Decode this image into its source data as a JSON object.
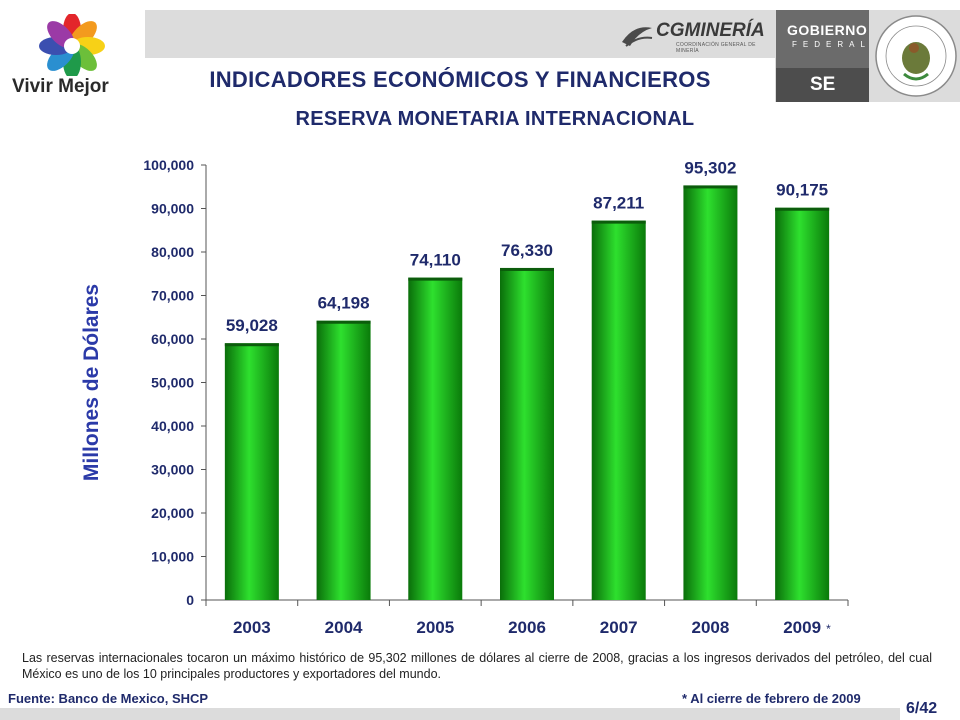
{
  "header": {
    "title": "INDICADORES ECONÓMICOS Y FINANCIEROS",
    "logo_left_text": "Vivir Mejor",
    "cgm_name": "CGMINERÍA",
    "cgm_sub": "COORDINACIÓN GENERAL DE MINERÍA",
    "gob_line1": "GOBIERNO",
    "gob_line2": "FEDERAL",
    "se_label": "SE"
  },
  "colors": {
    "bar": "#16c016",
    "title": "#1f2a6b",
    "axis_title": "#2b3aa8",
    "band": "#dcdcdc"
  },
  "chart_data": {
    "type": "bar",
    "title": "RESERVA  MONETARIA  INTERNACIONAL",
    "ylabel": "Millones de Dólares",
    "xlabel": "",
    "categories": [
      "2003",
      "2004",
      "2005",
      "2006",
      "2007",
      "2008",
      "2009"
    ],
    "values": [
      59028,
      64198,
      74110,
      76330,
      87211,
      95302,
      90175
    ],
    "value_labels": [
      "59,028",
      "64,198",
      "74,110",
      "76,330",
      "87,211",
      "95,302",
      "90,175"
    ],
    "yticks": [
      0,
      10000,
      20000,
      30000,
      40000,
      50000,
      60000,
      70000,
      80000,
      90000,
      100000
    ],
    "ytick_labels": [
      "0",
      "10,000",
      "20,000",
      "30,000",
      "40,000",
      "50,000",
      "60,000",
      "70,000",
      "80,000",
      "90,000",
      "100,000"
    ],
    "ylim": [
      0,
      100000
    ],
    "grid": false,
    "legend": "none",
    "category_marks": [
      "",
      "",
      "",
      "",
      "",
      "",
      "*"
    ]
  },
  "footer": {
    "note": "Las reservas internacionales tocaron un máximo histórico de 95,302 millones de dólares al cierre de 2008, gracias a los ingresos derivados del petróleo, del cual México es uno de los 10 principales productores y exportadores del mundo.",
    "source": "Fuente: Banco de Mexico, SHCP",
    "footnote": "* Al cierre de febrero de 2009",
    "page": "6/42"
  }
}
